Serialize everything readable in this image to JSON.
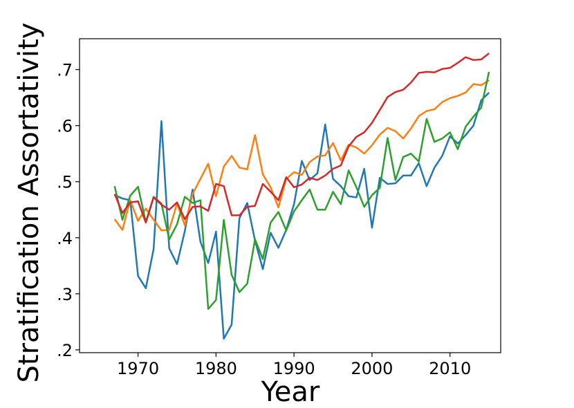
{
  "chart_data": {
    "type": "line",
    "title": "",
    "xlabel": "Year",
    "ylabel": "Stratification Assortativity",
    "xlim": [
      1962.5,
      2016.5
    ],
    "ylim": [
      0.195,
      0.755
    ],
    "xticks": [
      1970,
      1980,
      1990,
      2000,
      2010
    ],
    "xtick_labels": [
      "1970",
      "1980",
      "1990",
      "2000",
      "2010"
    ],
    "yticks": [
      0.2,
      0.3,
      0.4,
      0.5,
      0.6,
      0.7
    ],
    "ytick_labels": [
      ".2",
      ".3",
      ".4",
      ".5",
      ".6",
      ".7"
    ],
    "grid": false,
    "legend": "none",
    "x": [
      1967,
      1968,
      1969,
      1970,
      1971,
      1972,
      1973,
      1974,
      1975,
      1976,
      1977,
      1978,
      1979,
      1980,
      1981,
      1982,
      1983,
      1984,
      1985,
      1986,
      1987,
      1988,
      1989,
      1990,
      1991,
      1992,
      1993,
      1994,
      1995,
      1996,
      1997,
      1998,
      1999,
      2000,
      2001,
      2002,
      2003,
      2004,
      2005,
      2006,
      2007,
      2008,
      2009,
      2010,
      2011,
      2012,
      2013,
      2014,
      2015
    ],
    "series": [
      {
        "color": "#1f77b4",
        "values": [
          0.476,
          0.47,
          0.467,
          0.332,
          0.31,
          0.38,
          0.608,
          0.381,
          0.353,
          0.412,
          0.486,
          0.393,
          0.355,
          0.411,
          0.22,
          0.245,
          0.435,
          0.462,
          0.395,
          0.344,
          0.409,
          0.382,
          0.414,
          0.46,
          0.537,
          0.503,
          0.515,
          0.602,
          0.505,
          0.492,
          0.474,
          0.472,
          0.523,
          0.418,
          0.507,
          0.496,
          0.497,
          0.511,
          0.511,
          0.533,
          0.492,
          0.525,
          0.546,
          0.581,
          0.568,
          0.583,
          0.6,
          0.645,
          0.659
        ]
      },
      {
        "color": "#ff7f0e",
        "values": [
          0.433,
          0.414,
          0.467,
          0.43,
          0.452,
          0.432,
          0.413,
          0.414,
          0.461,
          0.422,
          0.478,
          0.505,
          0.532,
          0.474,
          0.527,
          0.546,
          0.525,
          0.522,
          0.583,
          0.513,
          0.49,
          0.454,
          0.505,
          0.517,
          0.512,
          0.535,
          0.545,
          0.547,
          0.569,
          0.538,
          0.566,
          0.561,
          0.55,
          0.565,
          0.584,
          0.596,
          0.59,
          0.577,
          0.595,
          0.617,
          0.626,
          0.629,
          0.642,
          0.649,
          0.653,
          0.659,
          0.674,
          0.672,
          0.681
        ]
      },
      {
        "color": "#2ca02c",
        "values": [
          0.492,
          0.432,
          0.475,
          0.491,
          0.428,
          0.473,
          0.461,
          0.397,
          0.424,
          0.473,
          0.462,
          0.467,
          0.273,
          0.289,
          0.432,
          0.334,
          0.303,
          0.318,
          0.397,
          0.362,
          0.427,
          0.446,
          0.413,
          0.447,
          0.467,
          0.486,
          0.45,
          0.45,
          0.482,
          0.46,
          0.52,
          0.49,
          0.455,
          0.476,
          0.489,
          0.578,
          0.503,
          0.544,
          0.55,
          0.536,
          0.612,
          0.571,
          0.577,
          0.588,
          0.558,
          0.598,
          0.616,
          0.632,
          0.696
        ]
      },
      {
        "color": "#d62728",
        "values": [
          0.478,
          0.444,
          0.463,
          0.465,
          0.427,
          0.472,
          0.459,
          0.45,
          0.463,
          0.433,
          0.455,
          0.456,
          0.448,
          0.496,
          0.492,
          0.44,
          0.44,
          0.455,
          0.457,
          0.496,
          0.482,
          0.467,
          0.508,
          0.49,
          0.495,
          0.507,
          0.503,
          0.511,
          0.523,
          0.529,
          0.563,
          0.58,
          0.588,
          0.605,
          0.628,
          0.651,
          0.66,
          0.664,
          0.677,
          0.694,
          0.696,
          0.695,
          0.701,
          0.703,
          0.712,
          0.722,
          0.717,
          0.718,
          0.729
        ]
      }
    ]
  }
}
